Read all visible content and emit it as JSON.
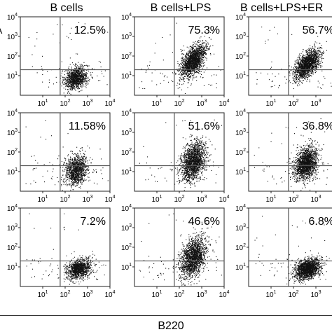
{
  "figure": {
    "column_titles": [
      "B cells",
      "B cells+LPS",
      "B cells+LPS+ER"
    ],
    "x_axis_label": "B220",
    "edge_letter": "A",
    "tick_labels": [
      "10",
      "1",
      "10",
      "2",
      "10",
      "3",
      "10",
      "4"
    ]
  },
  "chart_data": {
    "type": "scatter",
    "subtype": "flow-cytometry-dot-plot-grid",
    "rows": 3,
    "columns": 3,
    "xlabel": "B220",
    "x_scale": "log10",
    "y_scale": "log10",
    "xlim": [
      1,
      10000
    ],
    "ylim": [
      1,
      10000
    ],
    "x_ticks": [
      10,
      100,
      1000,
      10000
    ],
    "y_ticks": [
      10,
      100,
      1000,
      10000
    ],
    "quadrant_gate": {
      "x": 60,
      "y": 20
    },
    "panels": [
      {
        "row": 0,
        "col": 0,
        "column_title": "B cells",
        "gate_percent": "12.5%",
        "population": {
          "x_center": 300,
          "y_center": 8,
          "x_spread_decades": 0.25,
          "y_spread_decades": 0.28,
          "correlation": 0.25,
          "density": "medium"
        }
      },
      {
        "row": 0,
        "col": 1,
        "column_title": "B cells+LPS",
        "gate_percent": "75.3%",
        "population": {
          "x_center": 400,
          "y_center": 60,
          "x_spread_decades": 0.28,
          "y_spread_decades": 0.42,
          "correlation": 0.55,
          "density": "high"
        }
      },
      {
        "row": 0,
        "col": 2,
        "column_title": "B cells+LPS+ER",
        "gate_percent": "56.7%",
        "population": {
          "x_center": 400,
          "y_center": 40,
          "x_spread_decades": 0.28,
          "y_spread_decades": 0.36,
          "correlation": 0.6,
          "density": "high"
        }
      },
      {
        "row": 1,
        "col": 0,
        "column_title": "B cells",
        "gate_percent": "11.58%",
        "population": {
          "x_center": 300,
          "y_center": 12,
          "x_spread_decades": 0.25,
          "y_spread_decades": 0.38,
          "correlation": 0.2,
          "density": "medium"
        }
      },
      {
        "row": 1,
        "col": 1,
        "column_title": "B cells+LPS",
        "gate_percent": "51.6%",
        "population": {
          "x_center": 400,
          "y_center": 35,
          "x_spread_decades": 0.27,
          "y_spread_decades": 0.48,
          "correlation": 0.35,
          "density": "high"
        }
      },
      {
        "row": 1,
        "col": 2,
        "column_title": "B cells+LPS+ER",
        "gate_percent": "36.8%",
        "population": {
          "x_center": 350,
          "y_center": 25,
          "x_spread_decades": 0.26,
          "y_spread_decades": 0.42,
          "correlation": 0.3,
          "density": "high"
        }
      },
      {
        "row": 2,
        "col": 0,
        "column_title": "B cells",
        "gate_percent": "7.2%",
        "population": {
          "x_center": 400,
          "y_center": 8,
          "x_spread_decades": 0.27,
          "y_spread_decades": 0.25,
          "correlation": 0.3,
          "density": "medium"
        }
      },
      {
        "row": 2,
        "col": 1,
        "column_title": "B cells+LPS",
        "gate_percent": "46.6%",
        "population": {
          "x_center": 400,
          "y_center": 30,
          "x_spread_decades": 0.28,
          "y_spread_decades": 0.5,
          "correlation": 0.35,
          "density": "high"
        }
      },
      {
        "row": 2,
        "col": 2,
        "column_title": "B cells+LPS+ER",
        "gate_percent": "6.8%",
        "population": {
          "x_center": 400,
          "y_center": 8,
          "x_spread_decades": 0.27,
          "y_spread_decades": 0.25,
          "correlation": 0.3,
          "density": "high"
        }
      }
    ],
    "dot_color": "#111111",
    "gate_line_color": "#555555"
  }
}
